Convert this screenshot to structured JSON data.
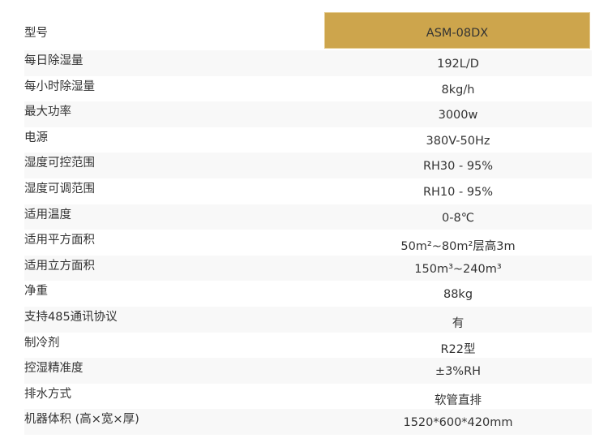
{
  "header_color": "#cda54c",
  "rows": [
    {
      "label": "型号",
      "value": "ASM-08DX"
    },
    {
      "label": "每日除湿量",
      "value": "192L/D"
    },
    {
      "label": "每小时除湿量",
      "value": "8kg/h"
    },
    {
      "label": "最大功率",
      "value": "3000w"
    },
    {
      "label": "电源",
      "value": "380V-50Hz"
    },
    {
      "label": "湿度可控范围",
      "value": "RH30 - 95%"
    },
    {
      "label": "湿度可调范围",
      "value": "RH10 - 95%"
    },
    {
      "label": "适用温度",
      "value": "0-8℃"
    },
    {
      "label": "适用平方面积",
      "value": "50m²~80m²层高3m"
    },
    {
      "label": "适用立方面积",
      "value": "150m³~240m³"
    },
    {
      "label": "净重",
      "value": "88kg"
    },
    {
      "label": "支持485通讯协议",
      "value": "有"
    },
    {
      "label": "制冷剂",
      "value": "R22型"
    },
    {
      "label": "控湿精准度",
      "value": "±3%RH"
    },
    {
      "label": "排水方式",
      "value": "软管直排"
    },
    {
      "label": "机器体积 (高×宽×厚)",
      "value": "1520*600*420mm"
    }
  ]
}
